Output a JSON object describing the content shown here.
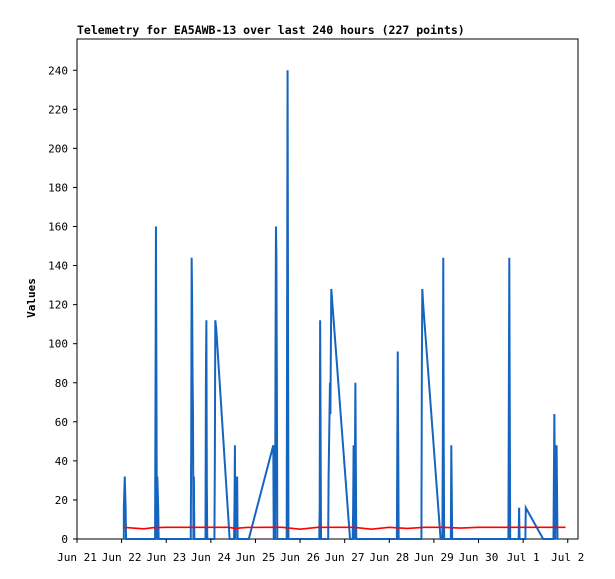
{
  "chart_data": {
    "type": "line",
    "title": "Telemetry for EA5AWB-13 over last 240 hours (227 points)",
    "xlabel": "",
    "ylabel": "Values",
    "x_ticks": [
      "Jun 21",
      "Jun 22",
      "Jun 23",
      "Jun 24",
      "Jun 25",
      "Jun 26",
      "Jun 27",
      "Jun 28",
      "Jun 29",
      "Jun 30",
      "Jul 1",
      "Jul 2"
    ],
    "y_ticks": [
      0,
      20,
      40,
      60,
      80,
      100,
      120,
      140,
      160,
      180,
      200,
      220,
      240
    ],
    "xlim": [
      0,
      11.23
    ],
    "ylim": [
      0,
      256
    ],
    "grid": false,
    "colors": {
      "blue_series": "#1565c0",
      "red_series": "#ff0000",
      "axis": "#000000"
    },
    "series": [
      {
        "color": "#1565c0",
        "points": [
          [
            1.05,
            0
          ],
          [
            1.05,
            16
          ],
          [
            1.07,
            32
          ],
          [
            1.09,
            16
          ],
          [
            1.1,
            0
          ],
          [
            1.75,
            0
          ],
          [
            1.76,
            80
          ],
          [
            1.77,
            160
          ],
          [
            1.78,
            80
          ],
          [
            1.79,
            0
          ],
          [
            1.8,
            32
          ],
          [
            1.82,
            16
          ],
          [
            1.83,
            0
          ],
          [
            2.55,
            0
          ],
          [
            2.56,
            48
          ],
          [
            2.57,
            144
          ],
          [
            2.58,
            124
          ],
          [
            2.59,
            84
          ],
          [
            2.6,
            64
          ],
          [
            2.61,
            0
          ],
          [
            2.62,
            32
          ],
          [
            2.63,
            0
          ],
          [
            2.88,
            0
          ],
          [
            2.89,
            84
          ],
          [
            2.9,
            112
          ],
          [
            2.91,
            28
          ],
          [
            2.92,
            0
          ],
          [
            3.08,
            0
          ],
          [
            3.09,
            40
          ],
          [
            3.1,
            112
          ],
          [
            3.12,
            108
          ],
          [
            3.4,
            8
          ],
          [
            3.42,
            0
          ],
          [
            3.52,
            0
          ],
          [
            3.53,
            16
          ],
          [
            3.54,
            48
          ],
          [
            3.55,
            0
          ],
          [
            3.56,
            24
          ],
          [
            3.58,
            8
          ],
          [
            3.59,
            32
          ],
          [
            3.6,
            0
          ],
          [
            3.85,
            0
          ],
          [
            4.4,
            48
          ],
          [
            4.41,
            0
          ],
          [
            4.44,
            0
          ],
          [
            4.45,
            96
          ],
          [
            4.46,
            160
          ],
          [
            4.47,
            144
          ],
          [
            4.48,
            80
          ],
          [
            4.49,
            0
          ],
          [
            4.7,
            0
          ],
          [
            4.71,
            120
          ],
          [
            4.72,
            240
          ],
          [
            4.73,
            120
          ],
          [
            4.74,
            0
          ],
          [
            5.43,
            0
          ],
          [
            5.44,
            16
          ],
          [
            5.45,
            112
          ],
          [
            5.46,
            56
          ],
          [
            5.47,
            0
          ],
          [
            5.63,
            0
          ],
          [
            5.64,
            32
          ],
          [
            5.65,
            48
          ],
          [
            5.66,
            64
          ],
          [
            5.67,
            80
          ],
          [
            5.68,
            64
          ],
          [
            5.7,
            128
          ],
          [
            6.12,
            0
          ],
          [
            6.18,
            0
          ],
          [
            6.19,
            16
          ],
          [
            6.2,
            48
          ],
          [
            6.21,
            24
          ],
          [
            6.22,
            0
          ],
          [
            6.23,
            40
          ],
          [
            6.24,
            80
          ],
          [
            6.25,
            40
          ],
          [
            6.26,
            0
          ],
          [
            7.17,
            0
          ],
          [
            7.18,
            48
          ],
          [
            7.19,
            96
          ],
          [
            7.2,
            48
          ],
          [
            7.21,
            0
          ],
          [
            7.72,
            0
          ],
          [
            7.73,
            88
          ],
          [
            7.74,
            128
          ],
          [
            7.76,
            120
          ],
          [
            8.15,
            0
          ],
          [
            8.19,
            0
          ],
          [
            8.2,
            48
          ],
          [
            8.21,
            144
          ],
          [
            8.22,
            48
          ],
          [
            8.23,
            0
          ],
          [
            8.38,
            0
          ],
          [
            8.39,
            48
          ],
          [
            8.4,
            24
          ],
          [
            8.41,
            0
          ],
          [
            9.67,
            0
          ],
          [
            9.68,
            72
          ],
          [
            9.69,
            144
          ],
          [
            9.7,
            72
          ],
          [
            9.71,
            0
          ],
          [
            9.9,
            0
          ],
          [
            9.91,
            16
          ],
          [
            9.92,
            0
          ],
          [
            10.05,
            0
          ],
          [
            10.06,
            16
          ],
          [
            10.45,
            0
          ],
          [
            10.68,
            0
          ],
          [
            10.69,
            32
          ],
          [
            10.7,
            64
          ],
          [
            10.71,
            32
          ],
          [
            10.72,
            0
          ],
          [
            10.73,
            32
          ],
          [
            10.75,
            48
          ],
          [
            10.76,
            24
          ],
          [
            10.77,
            0
          ]
        ]
      },
      {
        "color": "#ff0000",
        "points": [
          [
            1.05,
            6
          ],
          [
            1.25,
            5.6
          ],
          [
            1.5,
            5.2
          ],
          [
            1.7,
            5.8
          ],
          [
            2.0,
            6.0
          ],
          [
            2.5,
            6.0
          ],
          [
            3.0,
            6.0
          ],
          [
            3.4,
            6.0
          ],
          [
            3.55,
            5.4
          ],
          [
            3.8,
            5.9
          ],
          [
            4.2,
            6.0
          ],
          [
            4.6,
            6.0
          ],
          [
            5.0,
            5.0
          ],
          [
            5.4,
            6.0
          ],
          [
            5.8,
            6.0
          ],
          [
            6.2,
            6.0
          ],
          [
            6.6,
            5.0
          ],
          [
            7.0,
            6.0
          ],
          [
            7.4,
            5.4
          ],
          [
            7.8,
            6.0
          ],
          [
            8.2,
            6.0
          ],
          [
            8.6,
            5.6
          ],
          [
            9.0,
            6.0
          ],
          [
            9.4,
            6.0
          ],
          [
            9.8,
            6.0
          ],
          [
            10.2,
            6.0
          ],
          [
            10.6,
            6.0
          ],
          [
            10.95,
            6.0
          ]
        ]
      }
    ]
  }
}
